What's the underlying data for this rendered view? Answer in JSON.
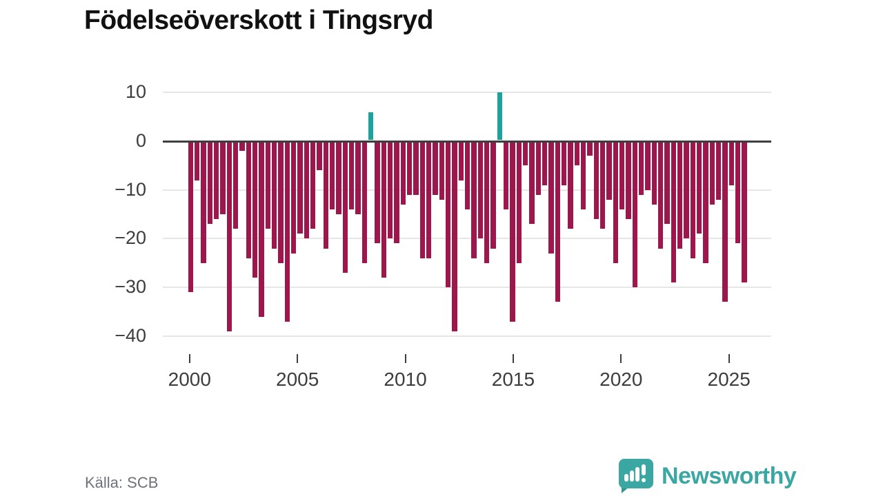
{
  "title": "Födelseöverskott i Tingsryd",
  "source": "Källa: SCB",
  "logo": {
    "text": "Newsworthy"
  },
  "colors": {
    "bar_negative": "#9d174d",
    "bar_positive": "#1aa39f",
    "axis_line": "#3d3d3d",
    "gridline": "#e6e6e6",
    "axis_text": "#3d3d3d",
    "muted_text": "#6e7178",
    "logo_teal": "#3aa7a2"
  },
  "chart_data": {
    "type": "bar",
    "title": "Födelseöverskott i Tingsryd",
    "xlabel": "",
    "ylabel": "",
    "ylim": [
      -40,
      10
    ],
    "grid": true,
    "legend": false,
    "x_start_year": 2000,
    "x_end_year": 2025,
    "x_tick_labels": [
      "2000",
      "2005",
      "2010",
      "2015",
      "2020",
      "2025"
    ],
    "y_ticks": [
      10,
      0,
      -10,
      -20,
      -30,
      -40
    ],
    "y_tick_labels": [
      "10",
      "0",
      "−10",
      "−20",
      "−30",
      "−40"
    ],
    "values": [
      -31,
      -8,
      -25,
      -17,
      -16,
      -15,
      -39,
      -18,
      -2,
      -24,
      -28,
      -36,
      -18,
      -22,
      -25,
      -37,
      -23,
      -19,
      -20,
      -18,
      -6,
      -22,
      -14,
      -15,
      -27,
      -14,
      -15,
      -25,
      6,
      -21,
      -28,
      -20,
      -21,
      -13,
      -11,
      -11,
      -24,
      -24,
      -11,
      -12,
      -30,
      -39,
      -8,
      -14,
      -24,
      -20,
      -25,
      -22,
      10,
      -14,
      -37,
      -25,
      -5,
      -17,
      -11,
      -9,
      -23,
      -33,
      -9,
      -18,
      -5,
      -14,
      -3,
      -16,
      -18,
      -12,
      -25,
      -14,
      -16,
      -30,
      -11,
      -10,
      -13,
      -22,
      -17,
      -29,
      -22,
      -20,
      -24,
      -19,
      -25,
      -13,
      -12,
      -33,
      -9,
      -21,
      -29
    ],
    "positive_indices": [
      28,
      48
    ]
  }
}
